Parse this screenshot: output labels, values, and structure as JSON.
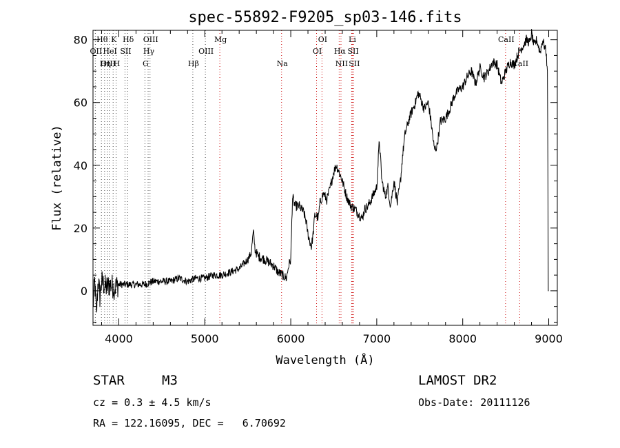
{
  "chart_data": {
    "type": "line",
    "title": "spec-55892-F9205_sp03-146.fits",
    "xlabel": "Wavelength (Å)",
    "ylabel": "Flux (relative)",
    "xlim": [
      3700,
      9100
    ],
    "ylim": [
      -11,
      83
    ],
    "x_ticks": [
      4000,
      5000,
      6000,
      7000,
      8000,
      9000
    ],
    "y_ticks": [
      0,
      20,
      40,
      60,
      80
    ],
    "grid": false,
    "series": [
      {
        "x": [
          3700,
          3720,
          3740,
          3760,
          3780,
          3800,
          3850,
          3900,
          3950,
          4000,
          4100,
          4200,
          4300,
          4400,
          4500,
          4600,
          4700,
          4800,
          4900,
          5000,
          5100,
          5200,
          5300,
          5400,
          5500,
          5540,
          5565,
          5585,
          5620,
          5700,
          5800,
          5850,
          5900,
          5950,
          5975,
          6000,
          6020,
          6050,
          6100,
          6150,
          6180,
          6200,
          6240,
          6260,
          6280,
          6300,
          6320,
          6340,
          6380,
          6420,
          6460,
          6500,
          6530,
          6560,
          6600,
          6650,
          6700,
          6750,
          6800,
          6830,
          6860,
          6900,
          6950,
          7000,
          7030,
          7060,
          7100,
          7130,
          7160,
          7200,
          7240,
          7280,
          7300,
          7330,
          7380,
          7420,
          7450,
          7480,
          7500,
          7550,
          7600,
          7640,
          7670,
          7700,
          7740,
          7800,
          7850,
          7900,
          7950,
          8000,
          8050,
          8100,
          8150,
          8200,
          8250,
          8300,
          8350,
          8400,
          8450,
          8500,
          8550,
          8600,
          8650,
          8700,
          8740,
          8780,
          8800,
          8830,
          8860,
          8900,
          8930,
          8950,
          8970,
          8985,
          8990,
          8995,
          9000
        ],
        "y": [
          -5,
          3,
          -8,
          4,
          -2,
          3,
          1,
          2,
          1,
          2,
          2,
          2,
          2,
          3,
          3,
          3,
          4,
          3,
          4,
          4,
          5,
          5,
          6,
          7,
          10,
          12,
          19,
          13,
          11,
          10,
          8,
          6,
          5,
          4,
          8,
          10,
          30,
          27,
          27,
          25,
          22,
          18,
          14,
          18,
          24,
          24,
          23,
          28,
          31,
          29,
          33,
          38,
          40,
          38,
          35,
          30,
          27,
          26,
          24,
          23,
          26,
          27,
          30,
          33,
          48,
          35,
          30,
          33,
          27,
          35,
          28,
          36,
          43,
          50,
          55,
          58,
          60,
          63,
          62,
          58,
          60,
          52,
          45,
          46,
          54,
          55,
          58,
          62,
          64,
          65,
          68,
          70,
          66,
          71,
          68,
          70,
          73,
          72,
          66,
          70,
          73,
          72,
          76,
          78,
          80,
          79,
          82,
          78,
          80,
          76,
          80,
          78,
          76,
          70,
          40,
          0,
          0
        ]
      }
    ],
    "line_markers": [
      {
        "label": "Hθ",
        "x": 3798,
        "row": 1
      },
      {
        "label": "K",
        "x": 3934,
        "row": 1
      },
      {
        "label": "Hδ",
        "x": 4102,
        "row": 1
      },
      {
        "label": "OIII",
        "x": 4363,
        "row": 1
      },
      {
        "label": "Mg",
        "x": 5175,
        "row": 1
      },
      {
        "label": "OI",
        "x": 6363,
        "row": 1
      },
      {
        "label": "Li",
        "x": 6708,
        "row": 1
      },
      {
        "label": "CaII",
        "x": 8498,
        "row": 1
      },
      {
        "label": "OII",
        "x": 3727,
        "row": 2
      },
      {
        "label": "HeI",
        "x": 3889,
        "row": 2
      },
      {
        "label": "SII",
        "x": 4072,
        "row": 2
      },
      {
        "label": "Hγ",
        "x": 4341,
        "row": 2
      },
      {
        "label": "OIII",
        "x": 5007,
        "row": 2
      },
      {
        "label": "OI",
        "x": 6300,
        "row": 2
      },
      {
        "label": "Hα",
        "x": 6563,
        "row": 2
      },
      {
        "label": "SII",
        "x": 6717,
        "row": 2
      },
      {
        "label": "OIII",
        "x": 3869,
        "row": 3
      },
      {
        "label": "Hη",
        "x": 3835,
        "row": 3
      },
      {
        "label": "H",
        "x": 3969,
        "row": 3
      },
      {
        "label": "G",
        "x": 4304,
        "row": 3
      },
      {
        "label": "Hβ",
        "x": 4861,
        "row": 3
      },
      {
        "label": "Na",
        "x": 5893,
        "row": 3
      },
      {
        "label": "NII",
        "x": 6584,
        "row": 3
      },
      {
        "label": "SII",
        "x": 6731,
        "row": 3
      },
      {
        "label": "CaII",
        "x": 8662,
        "row": 3
      }
    ]
  },
  "info": {
    "object_class": "STAR",
    "subclass": "M3",
    "survey": "LAMOST DR2",
    "redshift": "cz = 0.3 ± 4.5 km/s",
    "obs_date": "Obs-Date: 20111126",
    "coords": "RA = 122.16095, DEC =   6.70692"
  }
}
